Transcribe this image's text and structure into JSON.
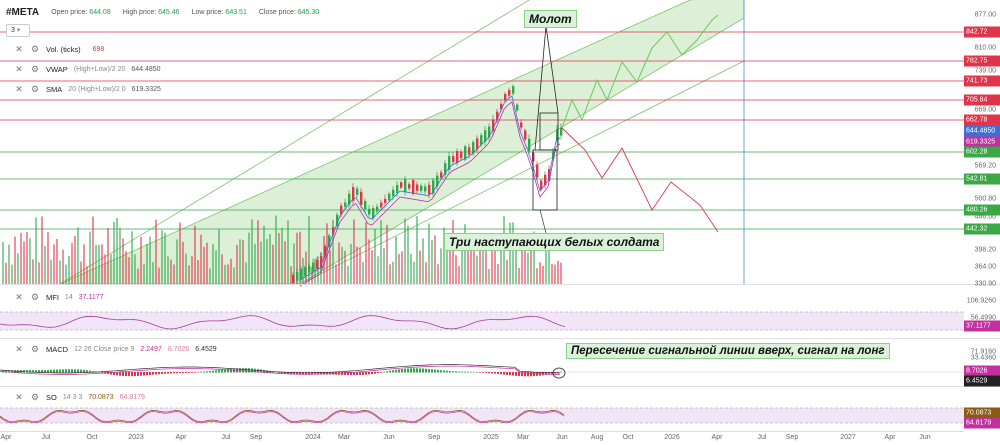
{
  "header": {
    "ticker": "#META",
    "open_label": "Open price:",
    "open_value": "644.08",
    "high_label": "High price:",
    "high_value": "645.46",
    "low_label": "Low price:",
    "low_value": "643.51",
    "close_label": "Close price:",
    "close_value": "645.30",
    "timeframe": "3"
  },
  "legends": {
    "vol": {
      "name": "Vol. (ticks)",
      "params": "",
      "value": "698"
    },
    "vwap": {
      "name": "VWAP",
      "params": "(High+Low)/2 20",
      "value": "644.4850"
    },
    "sma": {
      "name": "SMA",
      "params": "20 (High+Low)/2 0",
      "value": "619.3325"
    },
    "mfi": {
      "name": "MFI",
      "params": "14",
      "value": "37.1177"
    },
    "macd": {
      "name": "MACD",
      "params": "12 26 Close price 9",
      "value": "2.2497",
      "value2": "8.7026",
      "value3": "6.4529"
    },
    "so": {
      "name": "SO",
      "params": "14 3 3",
      "value": "70.0873",
      "value2": "64.8179"
    }
  },
  "annotations": {
    "hammer": "Молот",
    "soldiers": "Три наступающих белых солдата",
    "macd_cross": "Пересечение сигнальной линии вверх, сигнал на лонг"
  },
  "price_axis": {
    "ticks": [
      "877.00",
      "810.00",
      "739.00",
      "669.00",
      "569.20",
      "500.80",
      "466.00",
      "398.20",
      "364.00",
      "330.90"
    ],
    "tags": [
      {
        "label": "842.72",
        "color": "#e0344a"
      },
      {
        "label": "782.75",
        "color": "#e0344a"
      },
      {
        "label": "741.73",
        "color": "#e0344a"
      },
      {
        "label": "705.84",
        "color": "#e0344a"
      },
      {
        "label": "662.78",
        "color": "#e0344a"
      },
      {
        "label": "644.4850",
        "color": "#3f6fd6"
      },
      {
        "label": "619.3325",
        "color": "#c2309e"
      },
      {
        "label": "602.28",
        "color": "#39a845"
      },
      {
        "label": "542.81",
        "color": "#39a845"
      },
      {
        "label": "480.26",
        "color": "#39a845"
      },
      {
        "label": "442.32",
        "color": "#39a845"
      }
    ]
  },
  "mfi_axis": {
    "ticks": [
      "106.9260",
      "56.4990"
    ],
    "tag": {
      "label": "37.1177",
      "color": "#c2309e"
    }
  },
  "macd_axis": {
    "ticks": [
      "71.9160",
      "33.4360"
    ],
    "tags": [
      {
        "label": "8.7026",
        "color": "#c2309e"
      },
      {
        "label": "6.4529",
        "color": "#222222"
      }
    ]
  },
  "so_axis": {
    "tags": [
      {
        "label": "70.0873",
        "color": "#8a5a10"
      },
      {
        "label": "64.8179",
        "color": "#c2309e"
      }
    ]
  },
  "time_axis": [
    "Apr",
    "Jul",
    "Oct",
    "2023",
    "Apr",
    "Jul",
    "Sep",
    "2024",
    "Mar",
    "Jun",
    "Sep",
    "2025",
    "Mar",
    "Jun",
    "Aug",
    "Oct",
    "2026",
    "Apr",
    "Jul",
    "Sep",
    "2027",
    "Apr",
    "Jun"
  ],
  "colors": {
    "up": "#2ea84b",
    "down": "#e0344a",
    "channel": "#c8e8c0",
    "resistance": "#e0344a",
    "support": "#39a845",
    "vwap": "#3f6fd6",
    "sma": "#c2309e"
  }
}
